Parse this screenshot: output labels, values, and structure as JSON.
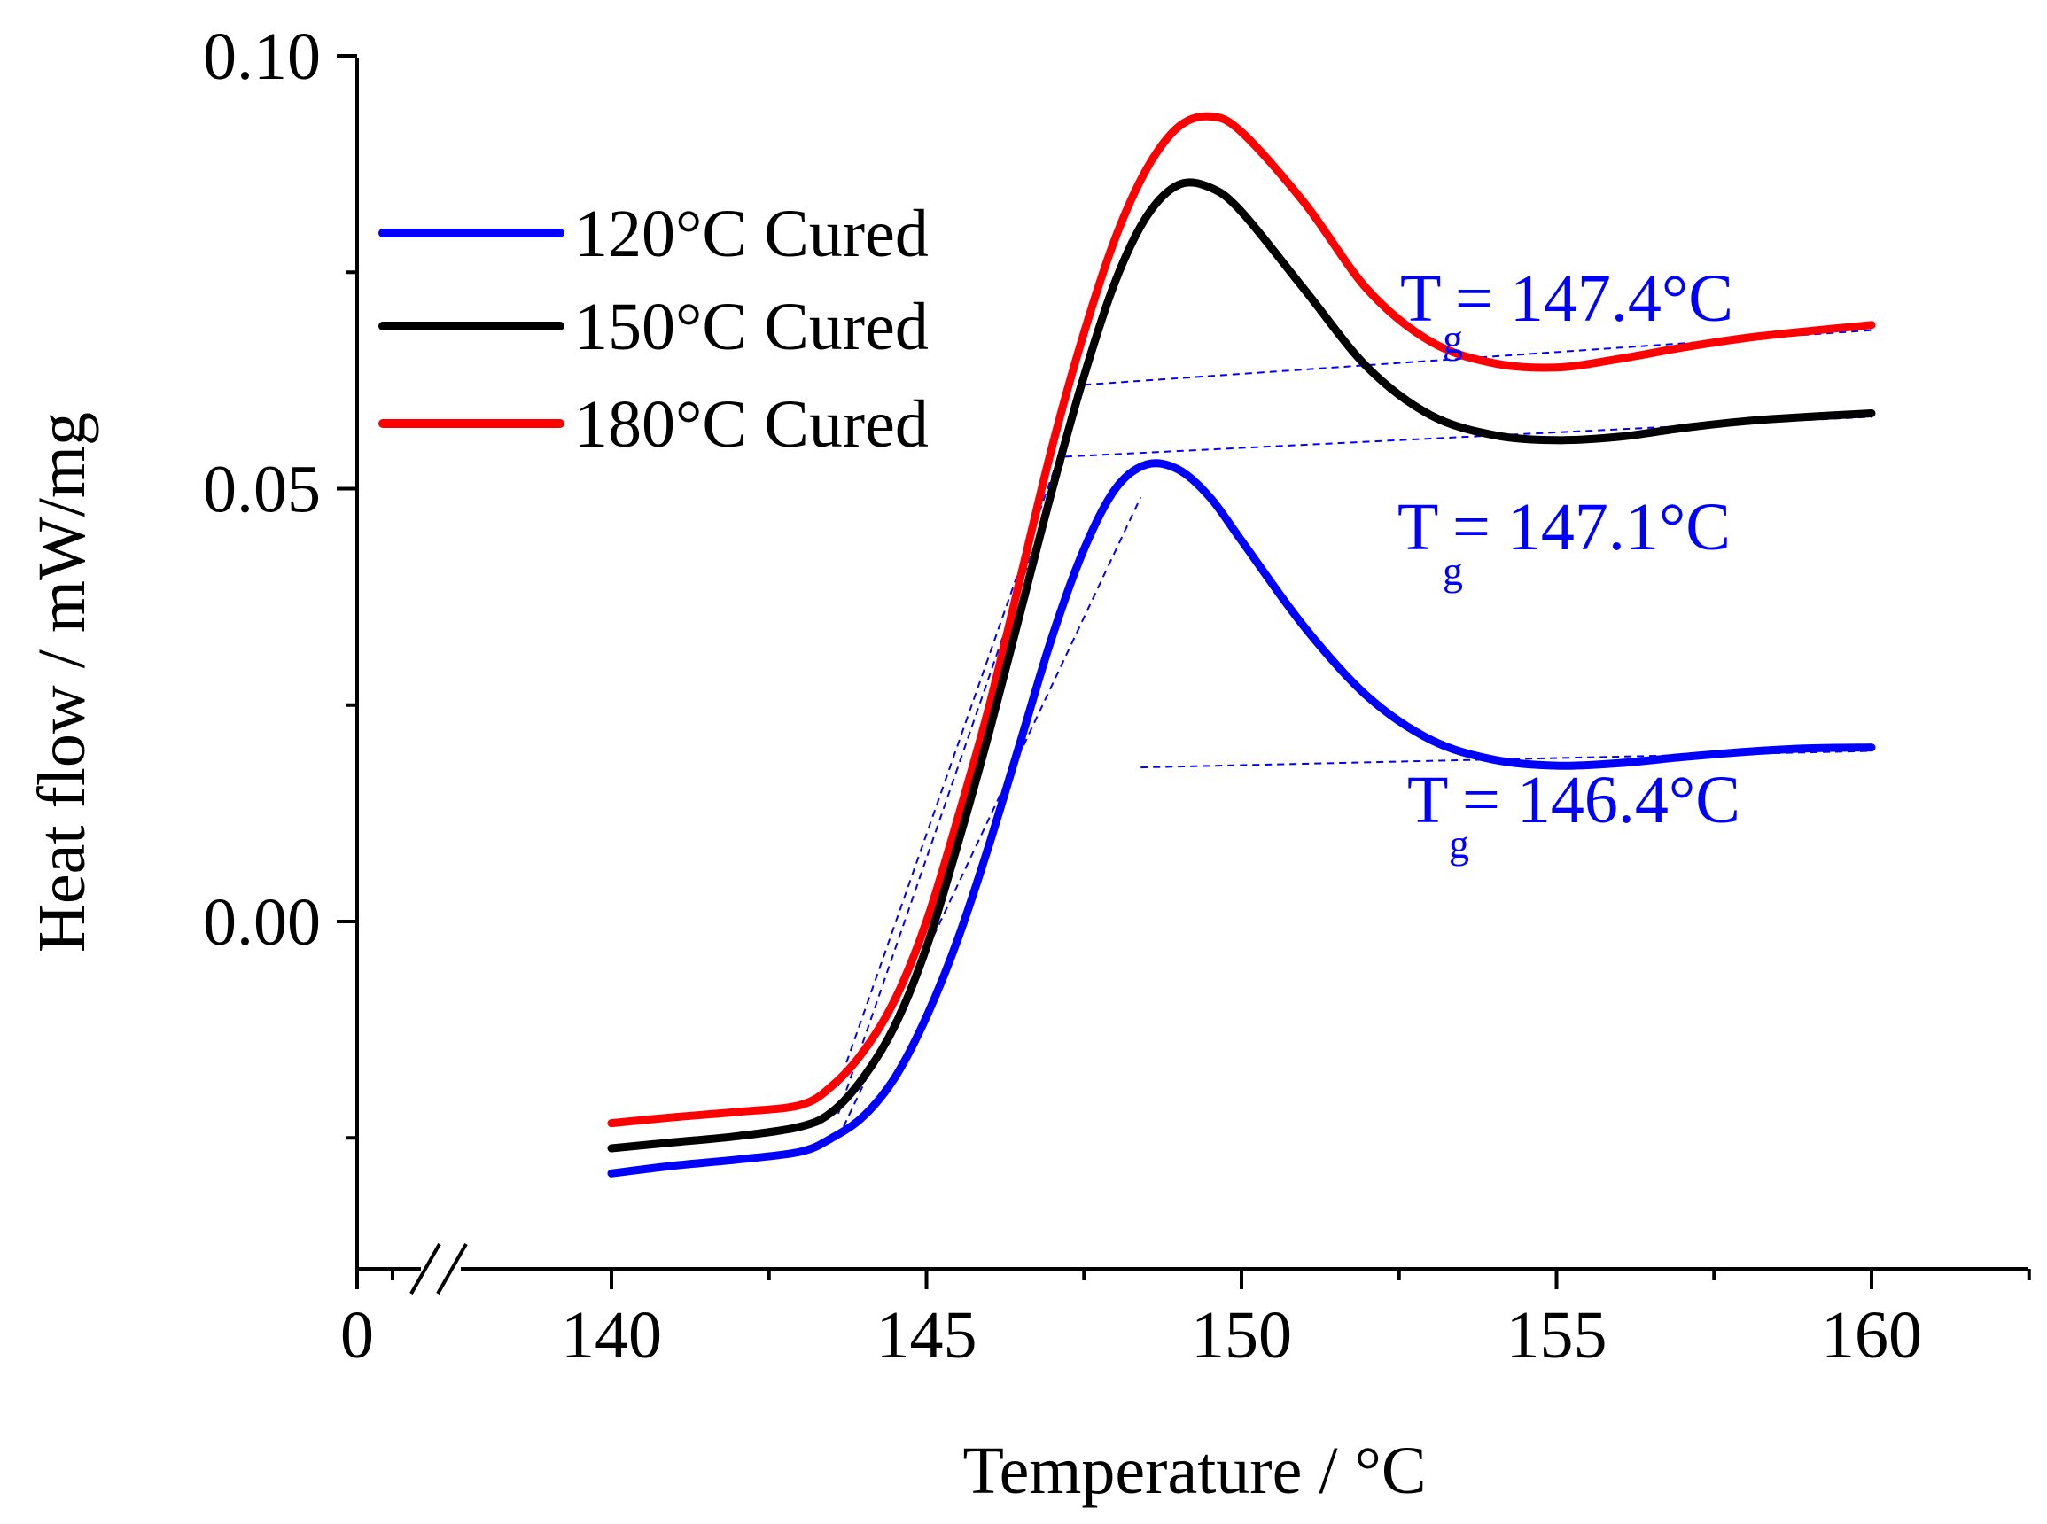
{
  "chart_data": {
    "type": "line",
    "xlabel": "Temperature / °C",
    "ylabel": "Heat flow / mW/mg",
    "x_ticks": [
      {
        "value": 0,
        "label": "0"
      },
      {
        "value": 140,
        "label": "140"
      },
      {
        "value": 145,
        "label": "145"
      },
      {
        "value": 150,
        "label": "150"
      },
      {
        "value": 155,
        "label": "155"
      },
      {
        "value": 160,
        "label": "160"
      }
    ],
    "y_ticks": [
      {
        "value": 0.0,
        "label": "0.00"
      },
      {
        "value": 0.05,
        "label": "0.05"
      },
      {
        "value": 0.1,
        "label": "0.10"
      }
    ],
    "xlim_broken": [
      140,
      162.5
    ],
    "ylim": [
      -0.04,
      0.1
    ],
    "axis_break": true,
    "legend": [
      "120°C Cured",
      "150°C Cured",
      "180°C Cured"
    ],
    "series": [
      {
        "name": "120°C Cured",
        "color": "#0000ff",
        "points": [
          [
            140,
            -0.0291
          ],
          [
            141,
            -0.0282
          ],
          [
            142,
            -0.0275
          ],
          [
            143,
            -0.0266
          ],
          [
            143.5,
            -0.025
          ],
          [
            144,
            -0.0225
          ],
          [
            144.5,
            -0.018
          ],
          [
            145,
            -0.011
          ],
          [
            145.5,
            -0.002
          ],
          [
            146,
            0.009
          ],
          [
            146.5,
            0.021
          ],
          [
            147,
            0.033
          ],
          [
            147.5,
            0.043
          ],
          [
            148,
            0.05
          ],
          [
            148.5,
            0.0528
          ],
          [
            149,
            0.0522
          ],
          [
            149.5,
            0.049
          ],
          [
            150,
            0.044
          ],
          [
            151,
            0.034
          ],
          [
            152,
            0.026
          ],
          [
            153,
            0.021
          ],
          [
            154,
            0.0187
          ],
          [
            155,
            0.018
          ],
          [
            156,
            0.0183
          ],
          [
            157,
            0.019
          ],
          [
            158,
            0.0196
          ],
          [
            159,
            0.02
          ],
          [
            160,
            0.0201
          ]
        ]
      },
      {
        "name": "150°C Cured",
        "color": "#000000",
        "points": [
          [
            140,
            -0.0262
          ],
          [
            141,
            -0.0255
          ],
          [
            142,
            -0.0248
          ],
          [
            143,
            -0.0237
          ],
          [
            143.5,
            -0.022
          ],
          [
            144,
            -0.018
          ],
          [
            144.5,
            -0.012
          ],
          [
            145,
            -0.003
          ],
          [
            145.5,
            0.009
          ],
          [
            146,
            0.022
          ],
          [
            146.5,
            0.036
          ],
          [
            147,
            0.05
          ],
          [
            147.5,
            0.063
          ],
          [
            148,
            0.074
          ],
          [
            148.5,
            0.0815
          ],
          [
            149,
            0.0851
          ],
          [
            149.5,
            0.0848
          ],
          [
            150,
            0.082
          ],
          [
            151,
            0.073
          ],
          [
            152,
            0.064
          ],
          [
            153,
            0.0585
          ],
          [
            154,
            0.0562
          ],
          [
            155,
            0.0556
          ],
          [
            156,
            0.056
          ],
          [
            157,
            0.057
          ],
          [
            158,
            0.0578
          ],
          [
            159,
            0.0583
          ],
          [
            160,
            0.0587
          ]
        ]
      },
      {
        "name": "180°C Cured",
        "color": "#ff0000",
        "points": [
          [
            140,
            -0.0233
          ],
          [
            141,
            -0.0226
          ],
          [
            142,
            -0.022
          ],
          [
            143,
            -0.0212
          ],
          [
            143.5,
            -0.019
          ],
          [
            144,
            -0.015
          ],
          [
            144.5,
            -0.009
          ],
          [
            145,
            0.0
          ],
          [
            145.5,
            0.012
          ],
          [
            146,
            0.025
          ],
          [
            146.5,
            0.04
          ],
          [
            147,
            0.055
          ],
          [
            147.5,
            0.068
          ],
          [
            148,
            0.079
          ],
          [
            148.5,
            0.087
          ],
          [
            149,
            0.0918
          ],
          [
            149.5,
            0.093
          ],
          [
            150,
            0.0912
          ],
          [
            151,
            0.083
          ],
          [
            152,
            0.073
          ],
          [
            153,
            0.067
          ],
          [
            154,
            0.0645
          ],
          [
            155,
            0.064
          ],
          [
            156,
            0.065
          ],
          [
            157,
            0.0663
          ],
          [
            158,
            0.0674
          ],
          [
            159,
            0.0682
          ],
          [
            160,
            0.0689
          ]
        ]
      }
    ],
    "tg_constructions": [
      {
        "series": "120°C Cured",
        "label_main": "T",
        "label_sub": "g",
        "label_rest": " = 146.4°C",
        "baseline": [
          [
            148.4,
            0.0178
          ],
          [
            160,
            0.0197
          ]
        ],
        "tangent": [
          [
            143.6,
            -0.025
          ],
          [
            148.4,
            0.049
          ]
        ]
      },
      {
        "series": "150°C Cured",
        "label_main": "T",
        "label_sub": "g",
        "label_rest": " = 147.1°C",
        "baseline": [
          [
            147.2,
            0.0537
          ],
          [
            160,
            0.0583
          ]
        ],
        "tangent": [
          [
            143.6,
            -0.0222
          ],
          [
            147.2,
            0.0537
          ]
        ]
      },
      {
        "series": "180°C Cured",
        "label_main": "T",
        "label_sub": "g",
        "label_rest": " = 147.4°C",
        "baseline": [
          [
            147.5,
            0.062
          ],
          [
            160,
            0.0683
          ]
        ],
        "tangent": [
          [
            143.6,
            -0.019
          ],
          [
            147.5,
            0.062
          ]
        ]
      }
    ]
  }
}
